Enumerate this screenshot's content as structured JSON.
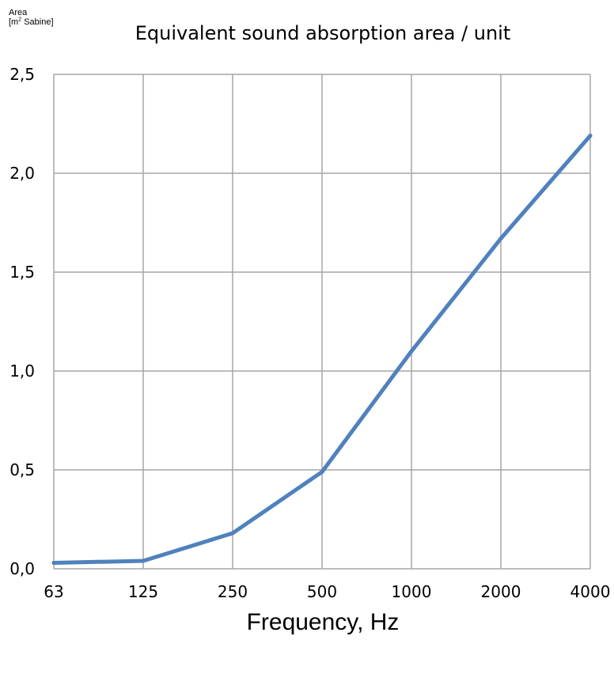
{
  "chart_data": {
    "type": "line",
    "title": "Equivalent sound absorption area / unit",
    "ylabel": {
      "line1": "Area",
      "line2_prefix": "[m",
      "line2_sup": "2",
      "line2_suffix": " Sabine]"
    },
    "xlabel": "Frequency, Hz",
    "categories": [
      "63",
      "125",
      "250",
      "500",
      "1000",
      "2000",
      "4000"
    ],
    "y_ticks": [
      "0,0",
      "0,5",
      "1,0",
      "1,5",
      "2,0",
      "2,5"
    ],
    "ylim": [
      0,
      2.5
    ],
    "grid": true,
    "series": [
      {
        "values": [
          0.03,
          0.04,
          0.18,
          0.49,
          1.1,
          1.67,
          2.19
        ]
      }
    ],
    "colors": {
      "line": "#4f81bd",
      "grid": "#a6a6a6"
    }
  }
}
